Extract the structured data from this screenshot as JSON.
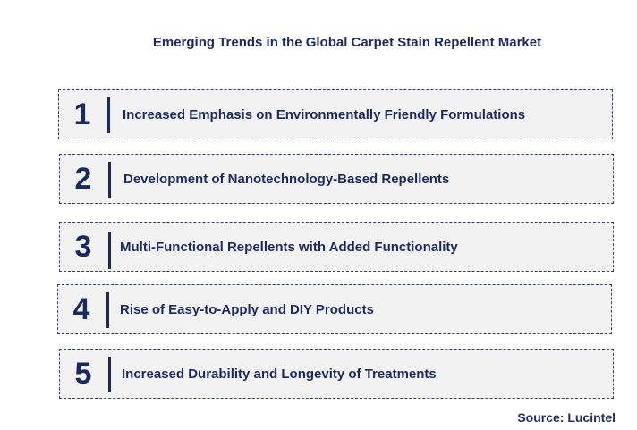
{
  "title": "Emerging Trends in the Global Carpet Stain Repellent Market",
  "trends": [
    {
      "number": "1",
      "text": "Increased Emphasis on Environmentally Friendly Formulations"
    },
    {
      "number": "2",
      "text": "Development of Nanotechnology-Based Repellents"
    },
    {
      "number": "3",
      "text": "Multi-Functional Repellents with Added Functionality"
    },
    {
      "number": "4",
      "text": "Rise of Easy-to-Apply and DIY Products"
    },
    {
      "number": "5",
      "text": "Increased Durability and Longevity of Treatments"
    }
  ],
  "source": "Source: Lucintel",
  "colors": {
    "text": "#1b2a5c",
    "box_fill": "#f2f2f2",
    "box_border": "#2e3f70"
  }
}
